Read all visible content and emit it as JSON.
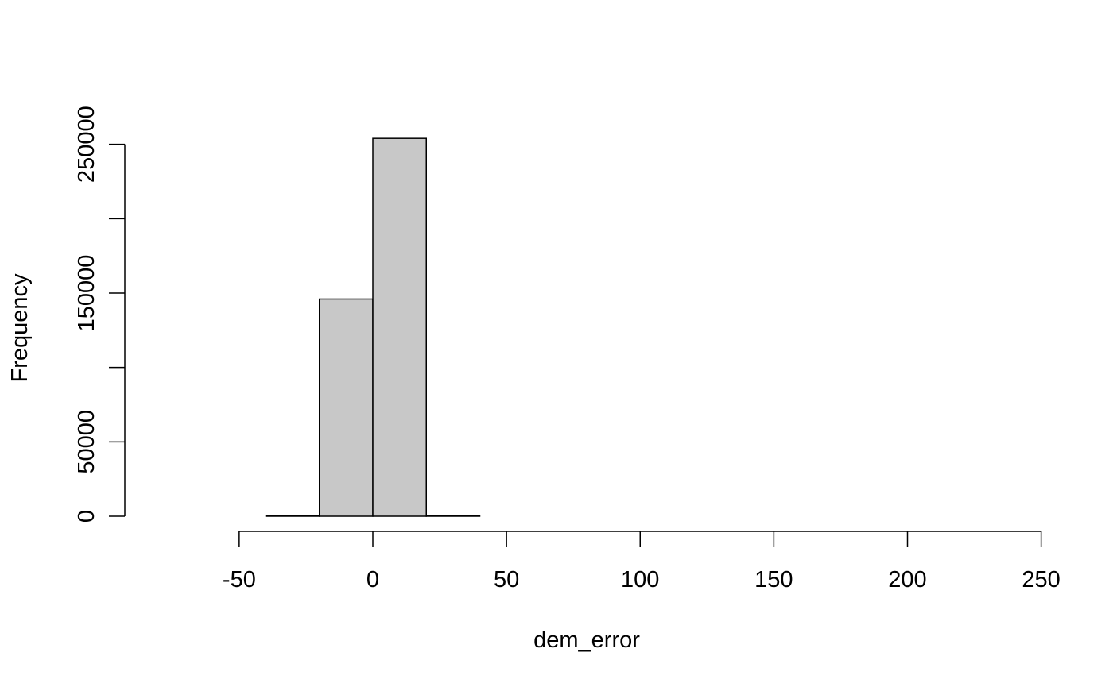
{
  "chart_data": {
    "type": "histogram",
    "title": "",
    "xlabel": "dem_error",
    "ylabel": "Frequency",
    "bin_width": 20,
    "bins": [
      {
        "x0": -80,
        "x1": -60,
        "count": 0
      },
      {
        "x0": -60,
        "x1": -40,
        "count": 0
      },
      {
        "x0": -40,
        "x1": -20,
        "count": 200
      },
      {
        "x0": -20,
        "x1": 0,
        "count": 146000
      },
      {
        "x0": 0,
        "x1": 20,
        "count": 254000
      },
      {
        "x0": 20,
        "x1": 40,
        "count": 300
      },
      {
        "x0": 40,
        "x1": 60,
        "count": 0
      },
      {
        "x0": 60,
        "x1": 80,
        "count": 0
      },
      {
        "x0": 80,
        "x1": 100,
        "count": 0
      },
      {
        "x0": 100,
        "x1": 120,
        "count": 0
      },
      {
        "x0": 120,
        "x1": 140,
        "count": 0
      },
      {
        "x0": 140,
        "x1": 160,
        "count": 0
      },
      {
        "x0": 160,
        "x1": 180,
        "count": 0
      },
      {
        "x0": 180,
        "x1": 200,
        "count": 0
      },
      {
        "x0": 200,
        "x1": 220,
        "count": 0
      },
      {
        "x0": 220,
        "x1": 240,
        "count": 0
      }
    ],
    "xlim": [
      -80,
      240
    ],
    "ylim": [
      0,
      260000
    ],
    "x_ticks": [
      -50,
      0,
      50,
      100,
      150,
      200,
      250
    ],
    "x_tick_labels": [
      "-50",
      "0",
      "50",
      "100",
      "150",
      "200",
      "250"
    ],
    "y_ticks": [
      0,
      50000,
      100000,
      150000,
      200000,
      250000
    ],
    "y_tick_labels": [
      "0",
      "50000",
      "",
      "150000",
      "",
      "250000"
    ],
    "grid": false,
    "legend": "none",
    "colors": {
      "bar_fill": "#c8c8c8",
      "bar_stroke": "#000000",
      "axis": "#000000"
    }
  }
}
